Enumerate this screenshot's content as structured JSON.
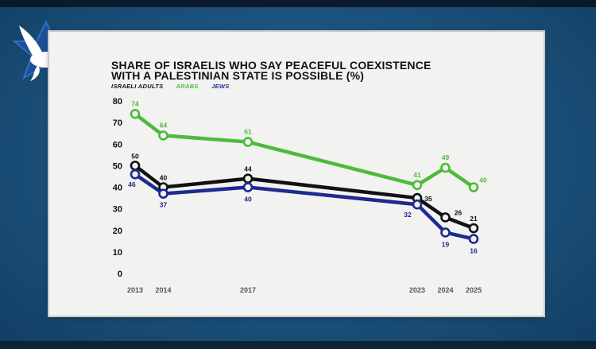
{
  "chart_data": {
    "type": "line",
    "title_line1": "SHARE OF ISRAELIS WHO SAY PEACEFUL COEXISTENCE",
    "title_line2": "WITH A PALESTINIAN STATE IS POSSIBLE (%)",
    "categories": [
      "2013",
      "2014",
      "2017",
      "2023",
      "2024",
      "2025"
    ],
    "x": [
      2013,
      2014,
      2017,
      2023,
      2024,
      2025
    ],
    "ylim": [
      0,
      80
    ],
    "yticks": [
      "0",
      "10",
      "20",
      "30",
      "40",
      "50",
      "60",
      "70",
      "80"
    ],
    "series": [
      {
        "name": "ISRAELI ADULTS",
        "color": "#111111",
        "values": [
          50,
          40,
          44,
          35,
          26,
          21
        ]
      },
      {
        "name": "ARABS",
        "color": "#4cbb3a",
        "values": [
          74,
          64,
          61,
          41,
          49,
          40
        ]
      },
      {
        "name": "JEWS",
        "color": "#1d2a8f",
        "values": [
          46,
          37,
          40,
          32,
          19,
          16
        ]
      }
    ]
  }
}
